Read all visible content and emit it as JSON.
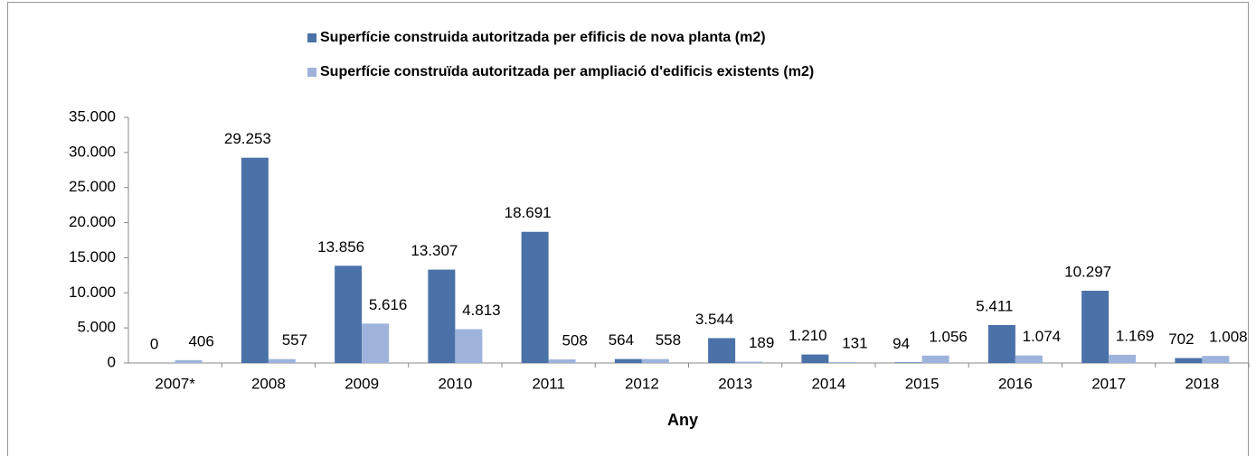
{
  "chart_data": {
    "type": "bar",
    "x_label": "Any",
    "categories": [
      "2007*",
      "2008",
      "2009",
      "2010",
      "2011",
      "2012",
      "2013",
      "2014",
      "2015",
      "2016",
      "2017",
      "2018"
    ],
    "series": [
      {
        "name": "Superfície construida autoritzada per efificis de nova planta (m2)",
        "color": "#4a72a8",
        "values": [
          0,
          29253,
          13856,
          13307,
          18691,
          564,
          3544,
          1210,
          94,
          5411,
          10297,
          702
        ],
        "value_labels": [
          "0",
          "29.253",
          "13.856",
          "13.307",
          "18.691",
          "564",
          "3.544",
          "1.210",
          "94",
          "5.411",
          "10.297",
          "702"
        ]
      },
      {
        "name": "Superfície construïda autoritzada per ampliació d'edificis existents (m2)",
        "color": "#9db3db",
        "values": [
          406,
          557,
          5616,
          4813,
          508,
          558,
          189,
          131,
          1056,
          1074,
          1169,
          1008
        ],
        "value_labels": [
          "406",
          "557",
          "5.616",
          "4.813",
          "508",
          "558",
          "189",
          "131",
          "1.056",
          "1.074",
          "1.169",
          "1.008"
        ]
      }
    ],
    "ylim": [
      0,
      35000
    ],
    "yticks": [
      0,
      {
        "value": 5000,
        "label": "5.000"
      },
      {
        "value": 10000,
        "label": "10.000"
      },
      {
        "value": 15000,
        "label": "15.000"
      },
      {
        "value": 20000,
        "label": "20.000"
      },
      {
        "value": 25000,
        "label": "25.000"
      },
      {
        "value": 30000,
        "label": "30.000"
      },
      {
        "value": 35000,
        "label": "35.000"
      }
    ],
    "grid": false,
    "legend": "top"
  }
}
